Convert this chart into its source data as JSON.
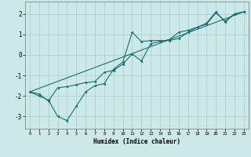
{
  "xlabel": "Humidex (Indice chaleur)",
  "ylabel": "",
  "bg_color": "#cce8e8",
  "grid_color": "#aacccc",
  "line_color": "#1a6e6e",
  "xlim": [
    -0.5,
    23.5
  ],
  "ylim": [
    -3.6,
    2.6
  ],
  "xticks": [
    0,
    1,
    2,
    3,
    4,
    5,
    6,
    7,
    8,
    9,
    10,
    11,
    12,
    13,
    14,
    15,
    16,
    17,
    18,
    19,
    20,
    21,
    22,
    23
  ],
  "yticks": [
    -3,
    -2,
    -1,
    0,
    1,
    2
  ],
  "line1_x": [
    0,
    1,
    2,
    3,
    4,
    5,
    6,
    7,
    8,
    9,
    10,
    11,
    12,
    13,
    14,
    15,
    16,
    17,
    18,
    19,
    20,
    21,
    22,
    23
  ],
  "line1_y": [
    -1.8,
    -2.0,
    -2.2,
    -3.0,
    -3.2,
    -2.5,
    -1.8,
    -1.5,
    -1.4,
    -0.7,
    -0.35,
    1.1,
    0.65,
    0.7,
    0.7,
    0.7,
    0.8,
    1.1,
    1.35,
    1.55,
    2.1,
    1.6,
    2.0,
    2.1
  ],
  "line2_x": [
    0,
    1,
    2,
    3,
    4,
    5,
    6,
    7,
    8,
    9,
    10,
    11,
    12,
    13,
    14,
    15,
    16,
    17,
    18,
    19,
    20,
    21,
    22,
    23
  ],
  "line2_y": [
    -1.8,
    -1.9,
    -2.25,
    -1.6,
    -1.55,
    -1.45,
    -1.35,
    -1.3,
    -0.85,
    -0.75,
    -0.45,
    0.05,
    -0.3,
    0.55,
    0.65,
    0.75,
    1.1,
    1.2,
    1.35,
    1.5,
    2.05,
    1.65,
    2.0,
    2.1
  ],
  "line3_x": [
    0,
    23
  ],
  "line3_y": [
    -1.8,
    2.1
  ]
}
